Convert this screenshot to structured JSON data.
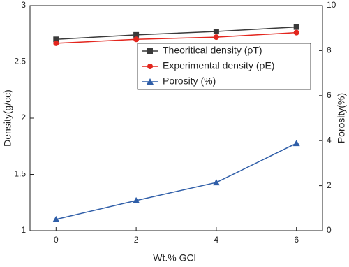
{
  "chart_data": {
    "type": "line",
    "x_label": "Wt.% GCl",
    "y_label": "Density(g/cc)",
    "y2_label": "Porosity(%)",
    "x": [
      0,
      2,
      4,
      6
    ],
    "xlim": [
      -0.65,
      6.65
    ],
    "xticks": [
      0,
      2,
      4,
      6
    ],
    "ylim": [
      1,
      3
    ],
    "yticks": [
      1,
      1.5,
      2,
      2.5,
      3
    ],
    "y2lim": [
      0,
      10
    ],
    "y2ticks": [
      0,
      2,
      4,
      6,
      8,
      10
    ],
    "grid": false,
    "legend": "upper right",
    "series": [
      {
        "name": "Theoritical density (ρT)",
        "color": "#3a3a3a",
        "marker": "square",
        "values": [
          2.7,
          2.74,
          2.77,
          2.81
        ]
      },
      {
        "name": " Experimental density (ρE)",
        "color": "#e3261e",
        "marker": "circle",
        "values": [
          2.665,
          2.7,
          2.72,
          2.76
        ]
      },
      {
        "name": "Porosity (%)",
        "color": "#2f5ea8",
        "marker": "triangle",
        "axis": "y2",
        "values": [
          0.5,
          1.34,
          2.14,
          3.88
        ]
      }
    ]
  }
}
